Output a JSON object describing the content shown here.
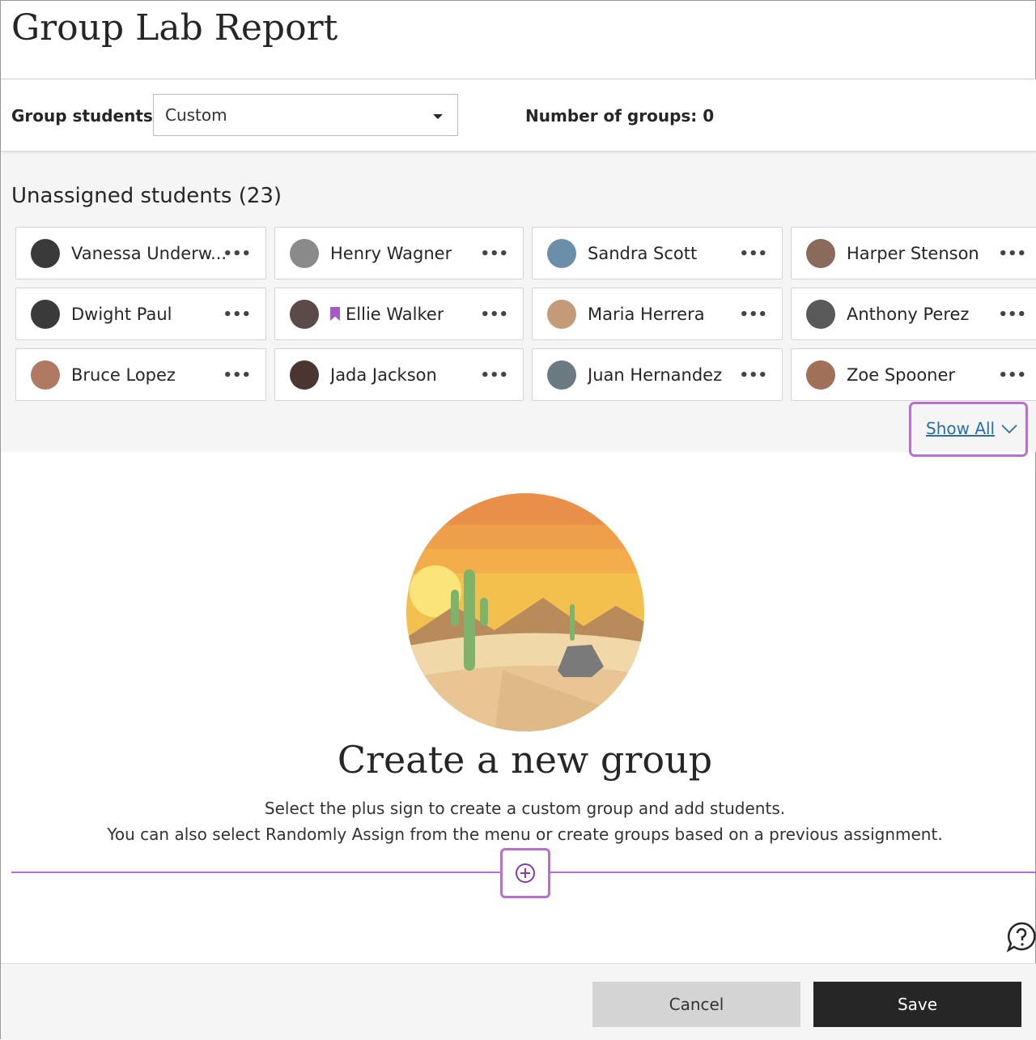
{
  "title": "Group Lab Report",
  "group_students": {
    "label": "Group students",
    "selected": "Custom"
  },
  "number_of_groups": "Number of groups: 0",
  "unassigned": {
    "title": "Unassigned students (23)",
    "students": [
      {
        "name": "Vanessa Underw...",
        "avatar": "#3a3a3a",
        "flag": false
      },
      {
        "name": "Henry Wagner",
        "avatar": "#8a8a8a",
        "flag": false
      },
      {
        "name": "Sandra Scott",
        "avatar": "#6b8fa8",
        "flag": false
      },
      {
        "name": "Harper Stenson",
        "avatar": "#8a6a5a",
        "flag": false
      },
      {
        "name": "Dwight Paul",
        "avatar": "#3a3a3a",
        "flag": false
      },
      {
        "name": "Ellie Walker",
        "avatar": "#5a4a48",
        "flag": true
      },
      {
        "name": "Maria Herrera",
        "avatar": "#c49a78",
        "flag": false
      },
      {
        "name": "Anthony Perez",
        "avatar": "#5a5a5a",
        "flag": false
      },
      {
        "name": "Bruce Lopez",
        "avatar": "#b07a62",
        "flag": false
      },
      {
        "name": "Jada Jackson",
        "avatar": "#4a3530",
        "flag": false
      },
      {
        "name": "Juan Hernandez",
        "avatar": "#6a7a80",
        "flag": false
      },
      {
        "name": "Zoe Spooner",
        "avatar": "#a07058",
        "flag": false
      }
    ],
    "more_label": "•••",
    "show_all": "Show All"
  },
  "empty_state": {
    "heading": "Create a new group",
    "line1": "Select the plus sign to create a custom group and add students.",
    "line2": "You can also select Randomly Assign from the menu or create groups based on a previous assignment."
  },
  "footer": {
    "cancel": "Cancel",
    "save": "Save"
  },
  "colors": {
    "accent": "#b96ed0",
    "link": "#2a6fa8",
    "save_bg": "#262626"
  }
}
